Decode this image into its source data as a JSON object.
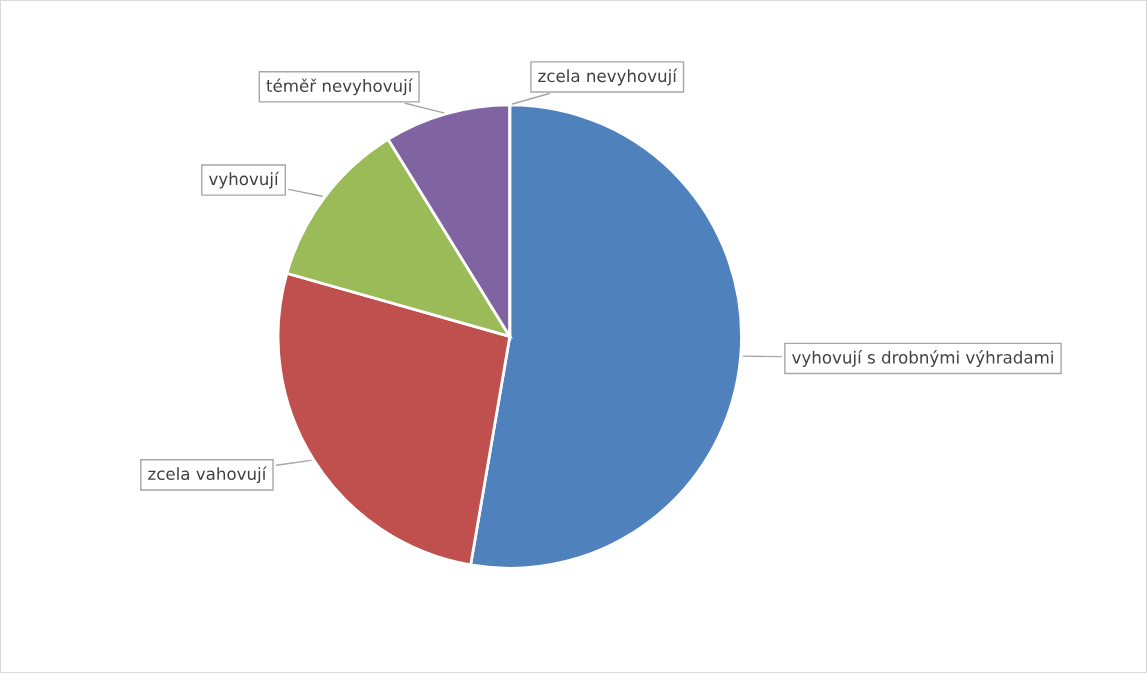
{
  "chart_data": {
    "type": "pie",
    "categories": [
      "vyhovují s drobnými výhradami",
      "zcela vahovují",
      "vyhovují",
      "téměř nevyhovují",
      "zcela nevyhovují"
    ],
    "values": [
      52.7,
      26.7,
      11.8,
      8.8,
      0
    ],
    "colors": [
      "#4f81bd",
      "#c0504d",
      "#9bbb59",
      "#8064a2",
      "#4bacc6"
    ],
    "legend": false
  }
}
